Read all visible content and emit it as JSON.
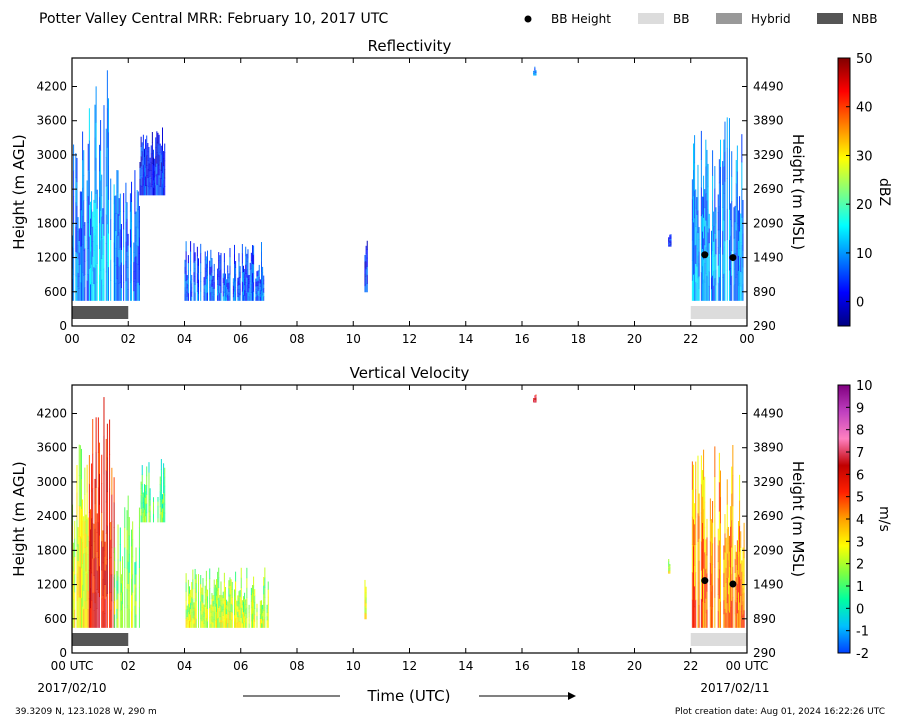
{
  "figure": {
    "title": "Potter Valley Central MRR:  February 10, 2017 UTC",
    "legend": [
      {
        "label": "BB Height",
        "kind": "dot",
        "color": "#000000"
      },
      {
        "label": "BB",
        "kind": "box",
        "color": "#dcdcdc"
      },
      {
        "label": "Hybrid",
        "kind": "box",
        "color": "#999999"
      },
      {
        "label": "NBB",
        "kind": "box",
        "color": "#555555"
      }
    ],
    "x_axis_label": "Time (UTC)",
    "date_start": "2017/02/10",
    "date_end": "2017/02/11",
    "footer_left": "39.3209 N, 123.1028 W, 290 m",
    "footer_right": "Plot creation date: Aug 01, 2024 16:22:26 UTC"
  },
  "chart_data": [
    {
      "type": "heatmap",
      "title": "Reflectivity",
      "ylabel": "Height (m AGL)",
      "ylabel_right": "Height (m MSL)",
      "xlim": [
        0,
        24
      ],
      "ylim": [
        0,
        4700
      ],
      "x_ticks": [
        "00",
        "02",
        "04",
        "06",
        "08",
        "10",
        "12",
        "14",
        "16",
        "18",
        "20",
        "22",
        "00"
      ],
      "y_ticks": [
        0,
        600,
        1200,
        1800,
        2400,
        3000,
        3600,
        4200
      ],
      "y_ticks_right": [
        290,
        890,
        1490,
        2090,
        2690,
        3290,
        3890,
        4490
      ],
      "colorbar": {
        "label": "dBZ",
        "range": [
          -5,
          50
        ],
        "ticks": [
          0,
          10,
          20,
          30,
          40,
          50
        ],
        "colors": [
          "#000080",
          "#0000ff",
          "#0080ff",
          "#00ffff",
          "#80ff80",
          "#ffff00",
          "#ff8000",
          "#ff0000",
          "#800000"
        ]
      },
      "bright_band_heights": [
        {
          "time": 22.5,
          "height": 1250
        },
        {
          "time": 23.5,
          "height": 1200
        }
      ],
      "bright_band_type": [
        {
          "start": 0.0,
          "end": 2.0,
          "type": "NBB"
        },
        {
          "start": 22.0,
          "end": 24.0,
          "type": "BB"
        }
      ],
      "echo_regions": [
        {
          "t0": 0.0,
          "t1": 0.6,
          "h0": 450,
          "h1": 3700,
          "v": 6
        },
        {
          "t0": 0.6,
          "t1": 1.5,
          "h0": 450,
          "h1": 4500,
          "v": 10
        },
        {
          "t0": 1.5,
          "t1": 2.4,
          "h0": 450,
          "h1": 2800,
          "v": 6
        },
        {
          "t0": 2.4,
          "t1": 3.3,
          "h0": 2300,
          "h1": 3500,
          "v": 2
        },
        {
          "t0": 4.0,
          "t1": 7.0,
          "h0": 450,
          "h1": 1500,
          "v": 5
        },
        {
          "t0": 10.4,
          "t1": 10.5,
          "h0": 600,
          "h1": 1500,
          "v": 2
        },
        {
          "t0": 16.4,
          "t1": 16.5,
          "h0": 4400,
          "h1": 4550,
          "v": 8
        },
        {
          "t0": 21.2,
          "t1": 21.3,
          "h0": 1400,
          "h1": 1700,
          "v": 2
        },
        {
          "t0": 22.0,
          "t1": 23.9,
          "h0": 450,
          "h1": 3700,
          "v": 8
        }
      ]
    },
    {
      "type": "heatmap",
      "title": "Vertical Velocity",
      "ylabel": "Height (m AGL)",
      "ylabel_right": "Height (m MSL)",
      "xlim": [
        0,
        24
      ],
      "ylim": [
        0,
        4700
      ],
      "x_ticks": [
        "00 UTC",
        "02",
        "04",
        "06",
        "08",
        "10",
        "12",
        "14",
        "16",
        "18",
        "20",
        "22",
        "00 UTC"
      ],
      "y_ticks": [
        0,
        600,
        1200,
        1800,
        2400,
        3000,
        3600,
        4200
      ],
      "y_ticks_right": [
        290,
        890,
        1490,
        2090,
        2690,
        3290,
        3890,
        4490
      ],
      "colorbar": {
        "label": "m/s",
        "range": [
          -2,
          10
        ],
        "ticks": [
          -2,
          -1,
          0,
          1,
          2,
          3,
          4,
          5,
          6,
          7,
          8,
          9,
          10
        ],
        "colors": [
          "#0040ff",
          "#00c0ff",
          "#00ffa0",
          "#80ff40",
          "#ffff00",
          "#ffa000",
          "#ff2000",
          "#c00000",
          "#ff80c0",
          "#c040c0",
          "#800080"
        ]
      },
      "bright_band_heights": [
        {
          "time": 22.5,
          "height": 1270
        },
        {
          "time": 23.5,
          "height": 1210
        }
      ],
      "bright_band_type": [
        {
          "start": 0.0,
          "end": 2.0,
          "type": "NBB"
        },
        {
          "start": 22.0,
          "end": 24.0,
          "type": "BB"
        }
      ],
      "echo_regions": [
        {
          "t0": 0.0,
          "t1": 0.6,
          "h0": 450,
          "h1": 3700,
          "v": 2
        },
        {
          "t0": 0.6,
          "t1": 1.5,
          "h0": 450,
          "h1": 4500,
          "v": 5
        },
        {
          "t0": 1.5,
          "t1": 2.4,
          "h0": 450,
          "h1": 2800,
          "v": 1
        },
        {
          "t0": 2.4,
          "t1": 3.3,
          "h0": 2300,
          "h1": 3500,
          "v": 0.5
        },
        {
          "t0": 4.0,
          "t1": 7.0,
          "h0": 450,
          "h1": 1500,
          "v": 1.5
        },
        {
          "t0": 10.4,
          "t1": 10.5,
          "h0": 600,
          "h1": 1500,
          "v": 2
        },
        {
          "t0": 16.4,
          "t1": 16.5,
          "h0": 4400,
          "h1": 4550,
          "v": 6
        },
        {
          "t0": 21.2,
          "t1": 21.3,
          "h0": 1400,
          "h1": 1700,
          "v": 1.5
        },
        {
          "t0": 22.0,
          "t1": 23.9,
          "h0": 450,
          "h1": 3700,
          "v": 3.5
        }
      ]
    }
  ]
}
